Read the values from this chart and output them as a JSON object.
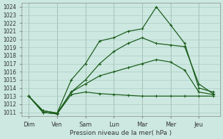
{
  "background_color": "#cce8e0",
  "grid_color": "#aaccc4",
  "line_color": "#1a5c1a",
  "x_labels": [
    "Dim",
    "Ven",
    "Sam",
    "Lun",
    "Mar",
    "Mer",
    "Jeu"
  ],
  "xlabel": "Pression niveau de la mer( hPa )",
  "ylim": [
    1010.5,
    1024.5
  ],
  "yticks": [
    1011,
    1012,
    1013,
    1014,
    1015,
    1016,
    1017,
    1018,
    1019,
    1020,
    1021,
    1022,
    1023,
    1024
  ],
  "series": [
    {
      "x": [
        0,
        1,
        2,
        3,
        4,
        5,
        6,
        7,
        8,
        9,
        10,
        11,
        12,
        13
      ],
      "y": [
        1013.0,
        1011.0,
        1010.8,
        1013.2,
        1013.5,
        1013.3,
        1013.2,
        1013.1,
        1013.0,
        1013.0,
        1013.0,
        1013.0,
        1013.0,
        1013.0
      ]
    },
    {
      "x": [
        0,
        1,
        2,
        3,
        4,
        5,
        6,
        7,
        8,
        9,
        10,
        11,
        12,
        13
      ],
      "y": [
        1013.0,
        1011.0,
        1010.8,
        1013.5,
        1014.5,
        1015.5,
        1016.0,
        1016.5,
        1017.0,
        1017.5,
        1017.2,
        1016.2,
        1013.5,
        1013.2
      ]
    },
    {
      "x": [
        0,
        1,
        2,
        3,
        4,
        5,
        6,
        7,
        8,
        9,
        10,
        11,
        12,
        13
      ],
      "y": [
        1013.0,
        1011.2,
        1010.9,
        1013.5,
        1015.0,
        1017.0,
        1018.5,
        1019.5,
        1020.2,
        1019.5,
        1019.3,
        1019.1,
        1014.5,
        1013.3
      ]
    },
    {
      "x": [
        0,
        1,
        2,
        3,
        4,
        5,
        6,
        7,
        8,
        9,
        10,
        11,
        12,
        13
      ],
      "y": [
        1013.0,
        1011.2,
        1010.9,
        1015.0,
        1017.0,
        1019.8,
        1020.2,
        1021.0,
        1021.3,
        1024.0,
        1021.8,
        1019.5,
        1014.0,
        1013.5
      ]
    }
  ],
  "x_tick_positions": [
    0,
    2,
    4,
    6,
    8,
    10,
    12
  ],
  "xlim": [
    -0.5,
    13.5
  ],
  "vline_positions": [
    0,
    2,
    4,
    6,
    8,
    10,
    12
  ]
}
